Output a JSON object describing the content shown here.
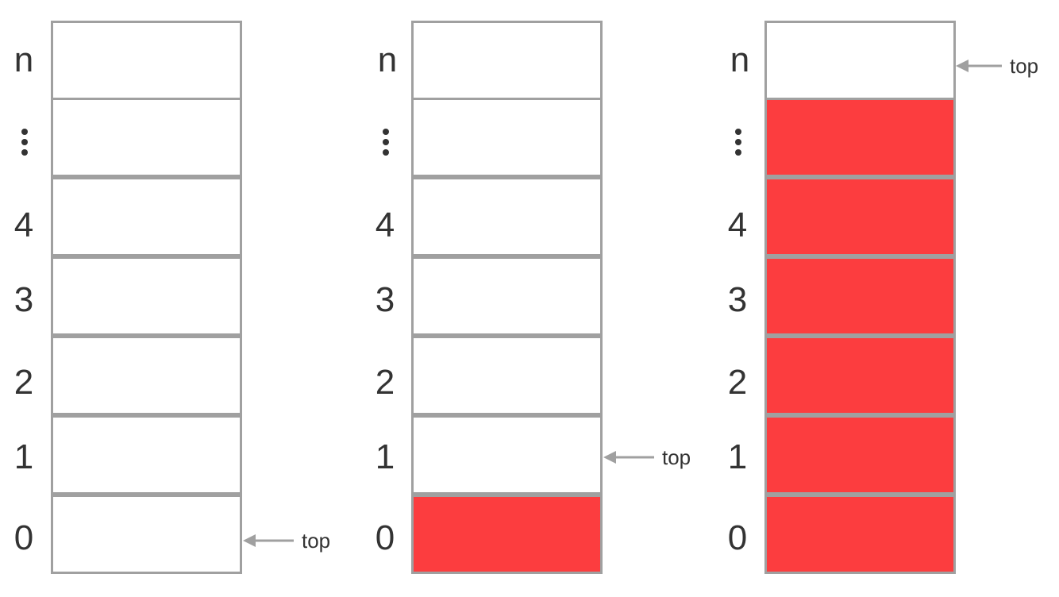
{
  "stacks": [
    {
      "labels": [
        "n",
        "⋮",
        "4",
        "3",
        "2",
        "1",
        "0"
      ],
      "filled": [
        false,
        false,
        false,
        false,
        false,
        false,
        false
      ],
      "pointer": "top"
    },
    {
      "labels": [
        "n",
        "⋮",
        "4",
        "3",
        "2",
        "1",
        "0"
      ],
      "filled": [
        false,
        false,
        false,
        false,
        false,
        false,
        true
      ],
      "pointer": "top"
    },
    {
      "labels": [
        "n",
        "⋮",
        "4",
        "3",
        "2",
        "1",
        "0"
      ],
      "filled": [
        false,
        true,
        true,
        true,
        true,
        true,
        true
      ],
      "pointer": "top"
    }
  ],
  "colors": {
    "filled": "#fc3d3f",
    "border": "#a0a0a0",
    "text": "#333333"
  },
  "icons": {
    "pointer": "left-arrow-icon",
    "ellipsis": "vertical-ellipsis-icon"
  }
}
